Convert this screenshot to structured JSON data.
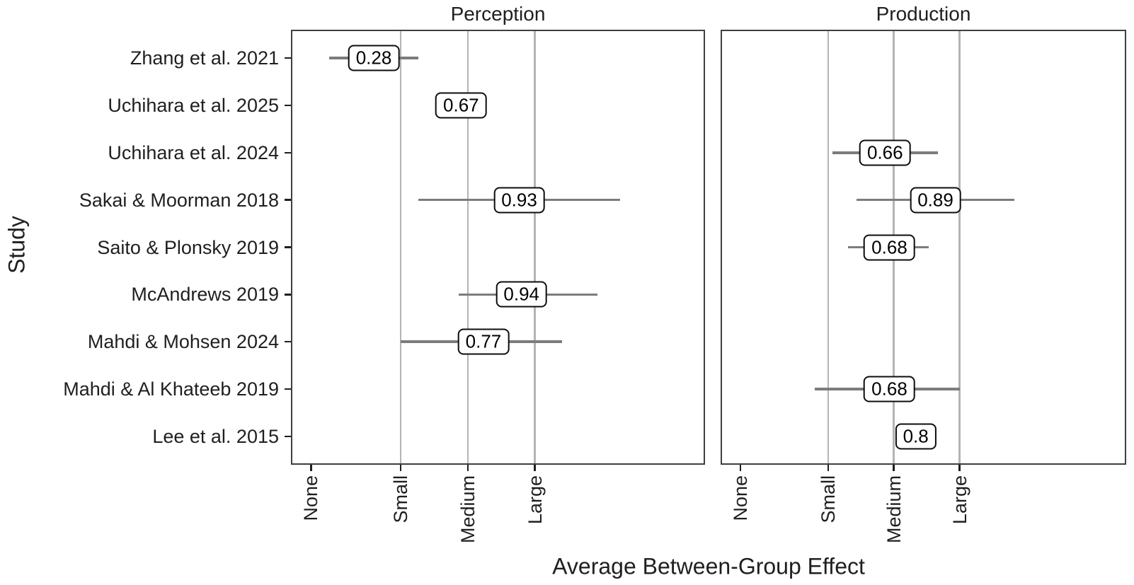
{
  "chart_data": {
    "type": "forest",
    "title": "",
    "xlabel": "Average Between-Group Effect",
    "ylabel": "Study",
    "facets": [
      "Perception",
      "Production"
    ],
    "studies": [
      "Zhang et al. 2021",
      "Uchihara et al. 2025",
      "Uchihara et al. 2024",
      "Sakai & Moorman 2018",
      "Saito & Plonsky 2019",
      "McAndrews 2019",
      "Mahdi & Mohsen 2024",
      "Mahdi & Al Khateeb 2019",
      "Lee et al. 2015"
    ],
    "x_scale": {
      "ticks": [
        {
          "label": "None",
          "value": 0.0
        },
        {
          "label": "Small",
          "value": 0.4
        },
        {
          "label": "Medium",
          "value": 0.7
        },
        {
          "label": "Large",
          "value": 1.0
        }
      ],
      "gridline_values": [
        0.4,
        0.7,
        1.0
      ],
      "domain": [
        -0.09,
        1.76
      ]
    },
    "grid": "vertical-only",
    "legend": "none",
    "series": [
      {
        "name": "Perception",
        "points": [
          {
            "study": "Zhang et al. 2021",
            "estimate": 0.28,
            "label": "0.28",
            "ci_low": 0.08,
            "ci_high": 0.48
          },
          {
            "study": "Uchihara et al. 2025",
            "estimate": 0.67,
            "label": "0.67",
            "ci_low": null,
            "ci_high": null
          },
          {
            "study": "Sakai & Moorman 2018",
            "estimate": 0.93,
            "label": "0.93",
            "ci_low": 0.48,
            "ci_high": 1.38
          },
          {
            "study": "McAndrews 2019",
            "estimate": 0.94,
            "label": "0.94",
            "ci_low": 0.66,
            "ci_high": 1.28
          },
          {
            "study": "Mahdi & Mohsen 2024",
            "estimate": 0.77,
            "label": "0.77",
            "ci_low": 0.4,
            "ci_high": 1.12
          }
        ]
      },
      {
        "name": "Production",
        "points": [
          {
            "study": "Uchihara et al. 2024",
            "estimate": 0.66,
            "label": "0.66",
            "ci_low": 0.42,
            "ci_high": 0.9
          },
          {
            "study": "Sakai & Moorman 2018",
            "estimate": 0.89,
            "label": "0.89",
            "ci_low": 0.53,
            "ci_high": 1.25
          },
          {
            "study": "Saito & Plonsky 2019",
            "estimate": 0.68,
            "label": "0.68",
            "ci_low": 0.49,
            "ci_high": 0.86
          },
          {
            "study": "Mahdi & Al Khateeb 2019",
            "estimate": 0.68,
            "label": "0.68",
            "ci_low": 0.34,
            "ci_high": 1.0
          },
          {
            "study": "Lee et al. 2015",
            "estimate": 0.8,
            "label": "0.8",
            "ci_low": null,
            "ci_high": null
          }
        ]
      }
    ],
    "colors": {
      "background": "#ffffff",
      "panel_border": "#3f3f3f",
      "gridline": "#b4b4b4",
      "whisker": "#7c7c7c",
      "box_border": "#0d0d0d",
      "box_fill": "#ffffff",
      "text": "#1f1f1f"
    }
  }
}
